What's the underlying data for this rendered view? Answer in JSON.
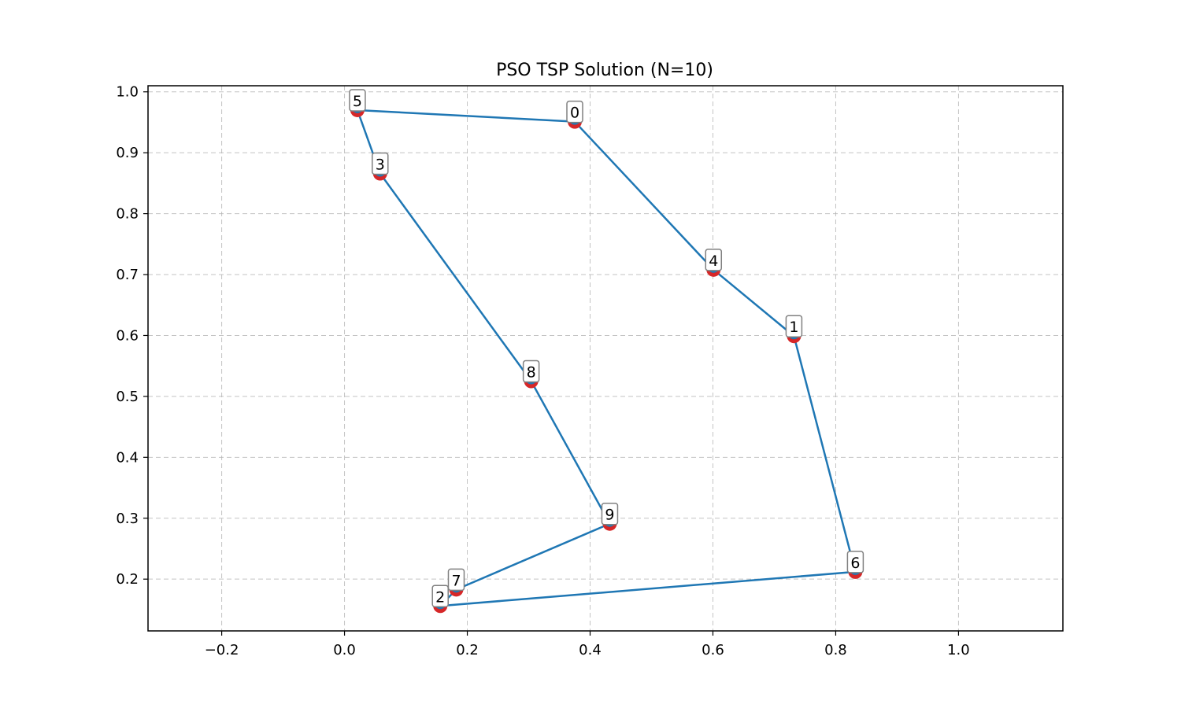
{
  "chart_data": {
    "type": "line",
    "title": "PSO TSP Solution (N=10)",
    "xlabel": "",
    "ylabel": "",
    "xlim": [
      -0.32,
      1.17
    ],
    "ylim": [
      0.115,
      1.01
    ],
    "xticks": [
      -0.2,
      0.0,
      0.2,
      0.4,
      0.6,
      0.8,
      1.0
    ],
    "xtick_labels": [
      "−0.2",
      "0.0",
      "0.2",
      "0.4",
      "0.6",
      "0.8",
      "1.0"
    ],
    "yticks": [
      0.2,
      0.3,
      0.4,
      0.5,
      0.6,
      0.7,
      0.8,
      0.9,
      1.0
    ],
    "ytick_labels": [
      "0.2",
      "0.3",
      "0.4",
      "0.5",
      "0.6",
      "0.7",
      "0.8",
      "0.9",
      "1.0"
    ],
    "grid": true,
    "points": [
      {
        "id": "0",
        "x": 0.375,
        "y": 0.951
      },
      {
        "id": "1",
        "x": 0.732,
        "y": 0.599
      },
      {
        "id": "2",
        "x": 0.156,
        "y": 0.156
      },
      {
        "id": "3",
        "x": 0.058,
        "y": 0.866
      },
      {
        "id": "4",
        "x": 0.601,
        "y": 0.708
      },
      {
        "id": "5",
        "x": 0.021,
        "y": 0.97
      },
      {
        "id": "6",
        "x": 0.832,
        "y": 0.212
      },
      {
        "id": "7",
        "x": 0.182,
        "y": 0.183
      },
      {
        "id": "8",
        "x": 0.304,
        "y": 0.525
      },
      {
        "id": "9",
        "x": 0.432,
        "y": 0.291
      }
    ],
    "route": [
      "5",
      "0",
      "4",
      "1",
      "6",
      "2",
      "7",
      "9",
      "8",
      "3",
      "5"
    ],
    "colors": {
      "route": "#1f77b4",
      "node_fill": "#d62728",
      "node_overlay": "#1f77b4",
      "label_border": "#808080"
    }
  }
}
